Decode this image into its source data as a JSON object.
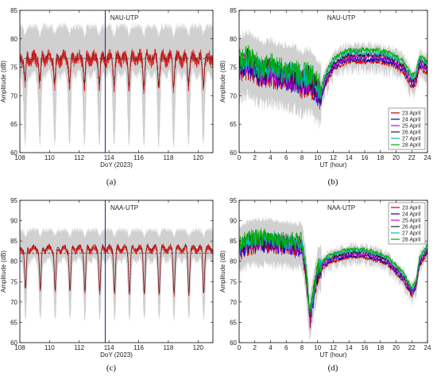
{
  "chart_data": [
    {
      "id": "a",
      "type": "line",
      "caption": "(a)",
      "title": "NAU-UTP",
      "xlabel": "DoY (2023)",
      "ylabel": "Amplitude (dB)",
      "xlim": [
        108,
        121
      ],
      "ylim": [
        60,
        85
      ],
      "xticks": [
        108,
        110,
        112,
        114,
        116,
        118,
        120
      ],
      "yticks": [
        60,
        65,
        70,
        75,
        80,
        85
      ],
      "vline": 113.75,
      "pattern": {
        "base": 76.5,
        "dip": 72.0,
        "period": 1.0,
        "phase": 0.35,
        "noise": 1.2,
        "band_top": 81.5,
        "band_bottom": 63.0,
        "mean_line": 76.5
      }
    },
    {
      "id": "b",
      "type": "line",
      "caption": "(b)",
      "title": "NAU-UTP",
      "xlabel": "UT (hour)",
      "ylabel": "Amplitude (dB)",
      "xlim": [
        0,
        24
      ],
      "ylim": [
        60,
        85
      ],
      "xticks": [
        0,
        2,
        4,
        6,
        8,
        10,
        12,
        14,
        16,
        18,
        20,
        22,
        24
      ],
      "yticks": [
        60,
        65,
        70,
        75,
        80,
        85
      ],
      "legend_position": "lower-right",
      "series": [
        {
          "name": "23 April",
          "color": "#cc0000"
        },
        {
          "name": "24 April",
          "color": "#0000cc"
        },
        {
          "name": "25 April",
          "color": "#cc00cc"
        },
        {
          "name": "26 April",
          "color": "#222222"
        },
        {
          "name": "27 April",
          "color": "#00bbbb"
        },
        {
          "name": "28 April",
          "color": "#00aa00"
        }
      ],
      "mean_profile": {
        "x": [
          0,
          1,
          2,
          3,
          4,
          5,
          6,
          7,
          8,
          9,
          10,
          10.5,
          11,
          12,
          13,
          14,
          15,
          16,
          17,
          18,
          19,
          20,
          21,
          22,
          22.5,
          23,
          24
        ],
        "y": [
          75,
          76,
          75,
          74,
          74.5,
          74,
          73.5,
          73.5,
          72.5,
          73,
          71,
          70.5,
          73,
          75.5,
          76.5,
          77,
          77,
          77,
          77,
          77,
          76.5,
          76,
          75,
          72.5,
          73,
          76,
          75
        ]
      }
    },
    {
      "id": "c",
      "type": "line",
      "caption": "(c)",
      "title": "NAA-UTP",
      "xlabel": "DoY (2023)",
      "ylabel": "Amplitude (dB)",
      "xlim": [
        108,
        121
      ],
      "ylim": [
        60,
        95
      ],
      "xticks": [
        108,
        110,
        112,
        114,
        116,
        118,
        120
      ],
      "yticks": [
        60,
        65,
        70,
        75,
        80,
        85,
        90,
        95
      ],
      "vline": 113.75,
      "pattern": {
        "base": 83.0,
        "dip": 72.5,
        "period": 1.0,
        "phase": 0.38,
        "noise": 0.8,
        "band_top": 87.0,
        "band_bottom": 68.0,
        "mean_line": 82.0
      }
    },
    {
      "id": "d",
      "type": "line",
      "caption": "(d)",
      "title": "NAA-UTP",
      "xlabel": "UT (hour)",
      "ylabel": "Amplitude (dB)",
      "xlim": [
        0,
        24
      ],
      "ylim": [
        60,
        95
      ],
      "xticks": [
        0,
        2,
        4,
        6,
        8,
        10,
        12,
        14,
        16,
        18,
        20,
        22,
        24
      ],
      "yticks": [
        60,
        65,
        70,
        75,
        80,
        85,
        90,
        95
      ],
      "legend_position": "top-right",
      "series": [
        {
          "name": "23 April",
          "color": "#cc0000"
        },
        {
          "name": "24 April",
          "color": "#0000cc"
        },
        {
          "name": "25 April",
          "color": "#cc00cc"
        },
        {
          "name": "26 April",
          "color": "#222222"
        },
        {
          "name": "27 April",
          "color": "#00bbbb"
        },
        {
          "name": "28 April",
          "color": "#00aa00"
        }
      ],
      "mean_profile": {
        "x": [
          0,
          1,
          2,
          3,
          4,
          5,
          6,
          7,
          8,
          8.5,
          9,
          9.5,
          10,
          11,
          12,
          13,
          14,
          15,
          16,
          17,
          18,
          19,
          20,
          21,
          22,
          22.5,
          23,
          24
        ],
        "y": [
          83,
          84.5,
          85,
          85,
          85,
          84.5,
          84.5,
          84,
          84,
          78,
          66,
          72,
          77.5,
          80,
          81,
          81.5,
          82,
          82,
          82,
          81.5,
          81,
          80,
          78,
          76,
          72.5,
          74,
          80,
          83
        ]
      }
    }
  ]
}
